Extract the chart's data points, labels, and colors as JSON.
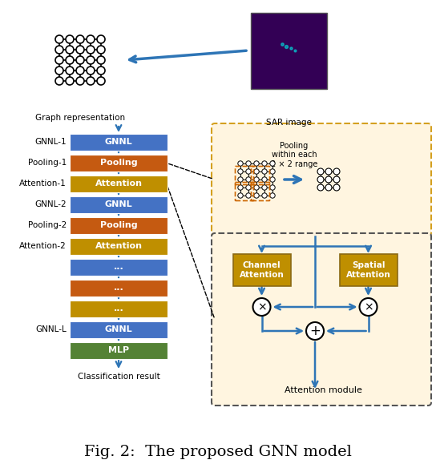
{
  "title": "Fig. 2:  The proposed GNN model",
  "bg_color": "#ffffff",
  "block_colors": {
    "gnnl": "#4472C4",
    "pooling": "#C55A11",
    "attention": "#BF8F00",
    "mlp": "#548235"
  },
  "left_labels": [
    "GNNL-1",
    "Pooling-1",
    "Attention-1",
    "GNNL-2",
    "Pooling-2",
    "Attention-2",
    "",
    "",
    "",
    "GNNL-L",
    ""
  ],
  "block_labels": [
    "GNNL",
    "Pooling",
    "Attention",
    "GNNL",
    "Pooling",
    "Attention",
    "...",
    "...",
    "...",
    "GNNL",
    "MLP"
  ],
  "block_types": [
    "gnnl",
    "pooling",
    "attention",
    "gnnl",
    "pooling",
    "attention",
    "gnnl",
    "pooling",
    "attention",
    "gnnl",
    "mlp"
  ],
  "arrow_color": "#2E75B6",
  "pooling_box_bg": "#FFF5E0",
  "attention_box_bg": "#FFF5E0",
  "attention_btn_color": "#BF8F00"
}
